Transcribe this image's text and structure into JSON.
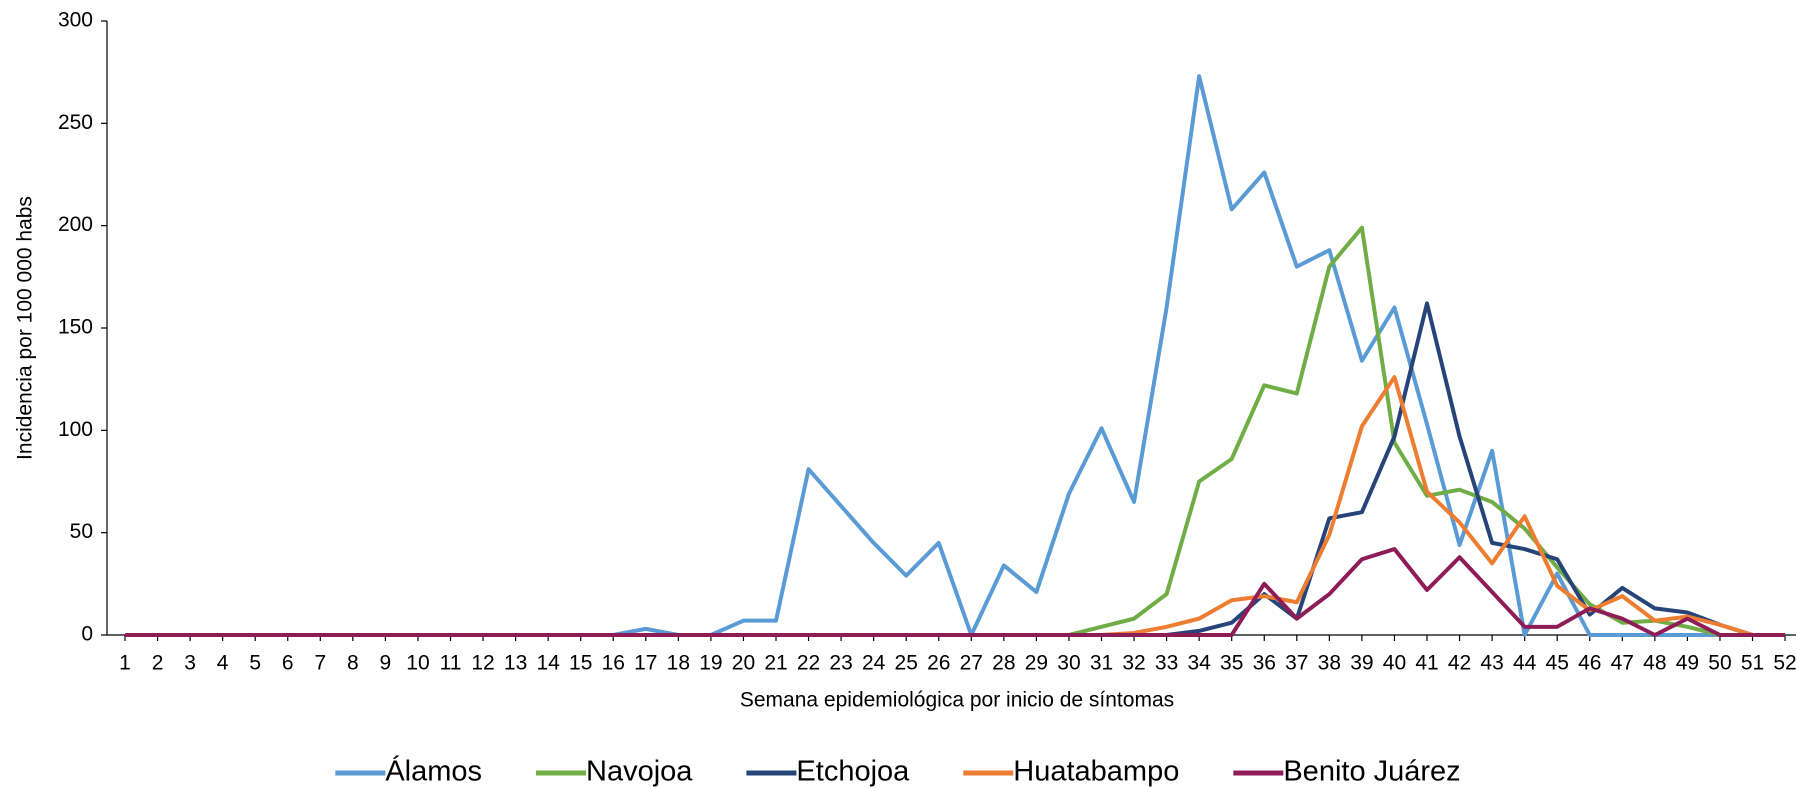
{
  "chart_data": {
    "type": "line",
    "y_label": "Incidencia por 100 000 habs",
    "x_label": "Semana epidemiológica por inicio de síntomas",
    "categories": [
      "1",
      "2",
      "3",
      "4",
      "5",
      "6",
      "7",
      "8",
      "9",
      "10",
      "11",
      "12",
      "13",
      "14",
      "15",
      "16",
      "17",
      "18",
      "19",
      "20",
      "21",
      "22",
      "23",
      "24",
      "25",
      "26",
      "27",
      "28",
      "29",
      "30",
      "31",
      "32",
      "33",
      "34",
      "35",
      "36",
      "37",
      "38",
      "39",
      "40",
      "41",
      "42",
      "43",
      "44",
      "45",
      "46",
      "47",
      "48",
      "49",
      "50",
      "51",
      "52"
    ],
    "ylim": [
      0,
      300
    ],
    "yticks": [
      0,
      50,
      100,
      150,
      200,
      250,
      300
    ],
    "series": [
      {
        "name": "Álamos",
        "color": "#5b9bd5",
        "values": [
          0,
          0,
          0,
          0,
          0,
          0,
          0,
          0,
          0,
          0,
          0,
          0,
          0,
          0,
          0,
          0,
          3,
          0,
          0,
          7,
          7,
          81,
          63,
          45,
          29,
          45,
          0,
          34,
          21,
          69,
          101,
          65,
          160,
          273,
          208,
          226,
          180,
          188,
          134,
          160,
          103,
          44,
          90,
          0,
          30,
          0,
          0,
          0,
          0,
          0,
          0,
          0
        ]
      },
      {
        "name": "Navojoa",
        "color": "#70ad47",
        "values": [
          0,
          0,
          0,
          0,
          0,
          0,
          0,
          0,
          0,
          0,
          0,
          0,
          0,
          0,
          0,
          0,
          0,
          0,
          0,
          0,
          0,
          0,
          0,
          0,
          0,
          0,
          0,
          0,
          0,
          0,
          4,
          8,
          20,
          75,
          86,
          122,
          118,
          180,
          199,
          94,
          68,
          71,
          65,
          52,
          33,
          15,
          6,
          7,
          4,
          0,
          0,
          0
        ]
      },
      {
        "name": "Etchojoa",
        "color": "#264478",
        "values": [
          0,
          0,
          0,
          0,
          0,
          0,
          0,
          0,
          0,
          0,
          0,
          0,
          0,
          0,
          0,
          0,
          0,
          0,
          0,
          0,
          0,
          0,
          0,
          0,
          0,
          0,
          0,
          0,
          0,
          0,
          0,
          0,
          0,
          2,
          6,
          20,
          8,
          57,
          60,
          97,
          162,
          97,
          45,
          42,
          37,
          10,
          23,
          13,
          11,
          5,
          0,
          0
        ]
      },
      {
        "name": "Huatabampo",
        "color": "#ed7d31",
        "values": [
          0,
          0,
          0,
          0,
          0,
          0,
          0,
          0,
          0,
          0,
          0,
          0,
          0,
          0,
          0,
          0,
          0,
          0,
          0,
          0,
          0,
          0,
          0,
          0,
          0,
          0,
          0,
          0,
          0,
          0,
          0,
          1,
          4,
          8,
          17,
          19,
          16,
          49,
          102,
          126,
          70,
          55,
          35,
          58,
          24,
          12,
          19,
          7,
          9,
          5,
          0,
          0
        ]
      },
      {
        "name": "Benito Juárez",
        "color": "#8e1c56",
        "values": [
          0,
          0,
          0,
          0,
          0,
          0,
          0,
          0,
          0,
          0,
          0,
          0,
          0,
          0,
          0,
          0,
          0,
          0,
          0,
          0,
          0,
          0,
          0,
          0,
          0,
          0,
          0,
          0,
          0,
          0,
          0,
          0,
          0,
          0,
          0,
          25,
          8,
          20,
          37,
          42,
          22,
          38,
          21,
          4,
          4,
          13,
          8,
          0,
          8,
          0,
          0,
          0
        ]
      }
    ]
  }
}
